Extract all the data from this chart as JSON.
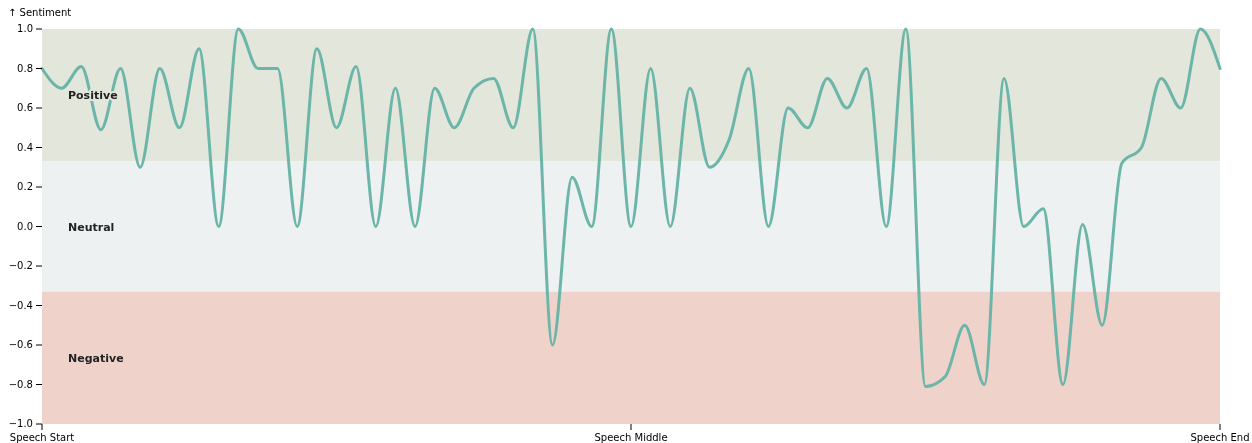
{
  "chart_data": {
    "type": "line",
    "ylabel": "↑ Sentiment",
    "categories": [
      "Speech Start",
      null,
      null,
      null,
      null,
      null,
      null,
      null,
      null,
      null,
      null,
      null,
      null,
      null,
      null,
      null,
      null,
      null,
      null,
      null,
      null,
      null,
      null,
      null,
      null,
      null,
      null,
      null,
      null,
      null,
      "Speech Middle",
      null,
      null,
      null,
      null,
      null,
      null,
      null,
      null,
      null,
      null,
      null,
      null,
      null,
      null,
      null,
      null,
      null,
      null,
      null,
      null,
      null,
      null,
      null,
      null,
      null,
      null,
      null,
      null,
      null,
      "Speech End"
    ],
    "series": [
      {
        "color": "#6cb5a9",
        "values": [
          0.8,
          0.7,
          0.81,
          0.49,
          0.8,
          0.3,
          0.8,
          0.5,
          0.9,
          0.0,
          1.0,
          0.8,
          0.8,
          0.0,
          0.9,
          0.5,
          0.81,
          0.0,
          0.7,
          0.0,
          0.7,
          0.5,
          0.7,
          0.75,
          0.5,
          1.0,
          -0.6,
          0.25,
          0.0,
          1.0,
          0.0,
          0.8,
          0.0,
          0.7,
          0.3,
          0.44,
          0.8,
          0.0,
          0.6,
          0.5,
          0.75,
          0.6,
          0.8,
          0.0,
          1.0,
          -0.81,
          -0.76,
          -0.5,
          -0.8,
          0.75,
          0.0,
          0.09,
          -0.8,
          0.01,
          -0.5,
          0.32,
          0.4,
          0.75,
          0.6,
          1.0,
          0.8
        ]
      }
    ],
    "ylim": [
      -1,
      1
    ],
    "yticks": [
      {
        "value": -1,
        "label": "−1.0"
      },
      {
        "value": -0.8,
        "label": "−0.8"
      },
      {
        "value": -0.6,
        "label": "−0.6"
      },
      {
        "value": -0.4,
        "label": "−0.4"
      },
      {
        "value": -0.2,
        "label": "−0.2"
      },
      {
        "value": 0,
        "label": "0.0"
      },
      {
        "value": 0.2,
        "label": "0.2"
      },
      {
        "value": 0.4,
        "label": "0.4"
      },
      {
        "value": 0.6,
        "label": "0.6"
      },
      {
        "value": 0.8,
        "label": "0.8"
      },
      {
        "value": 1,
        "label": "1.0"
      }
    ],
    "bands": [
      {
        "axis": "y",
        "from": 0.33,
        "to": 1,
        "label": "Positive",
        "color": "#e3e6da"
      },
      {
        "axis": "y",
        "from": -0.33,
        "to": 0.33,
        "label": "Neutral",
        "color": "#eef1f1"
      },
      {
        "axis": "y",
        "from": -1,
        "to": -0.33,
        "label": "Negative",
        "color": "#efd3cb"
      }
    ],
    "line_style": "solid",
    "grid": false
  }
}
